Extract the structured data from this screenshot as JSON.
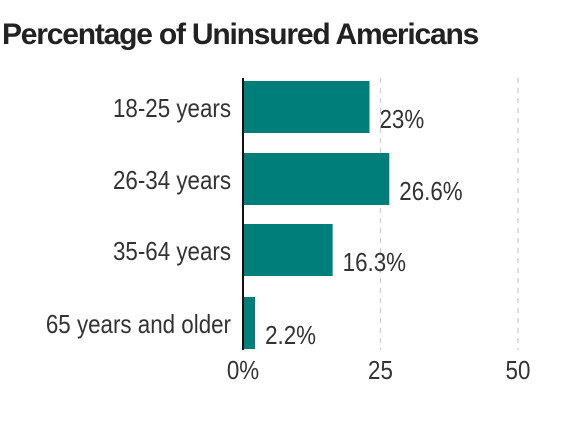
{
  "chart_data": {
    "type": "bar",
    "orientation": "horizontal",
    "title": "Percentage of Uninsured Americans",
    "categories": [
      "18-25 years",
      "26-34 years",
      "35-64 years",
      "65 years and older"
    ],
    "values": [
      23,
      26.6,
      16.3,
      2.2
    ],
    "value_labels": [
      "23%",
      "26.6%",
      "16.3%",
      "2.2%"
    ],
    "xlim": [
      0,
      50
    ],
    "xticks": [
      0,
      25,
      50
    ],
    "xtick_labels": [
      "0%",
      "25",
      "50"
    ],
    "grid": "vertical dashed",
    "xlabel": "",
    "ylabel": "",
    "colors": {
      "bar": "#007f7a",
      "axis": "#111111",
      "grid": "#cccccc",
      "text": "#333333"
    }
  }
}
